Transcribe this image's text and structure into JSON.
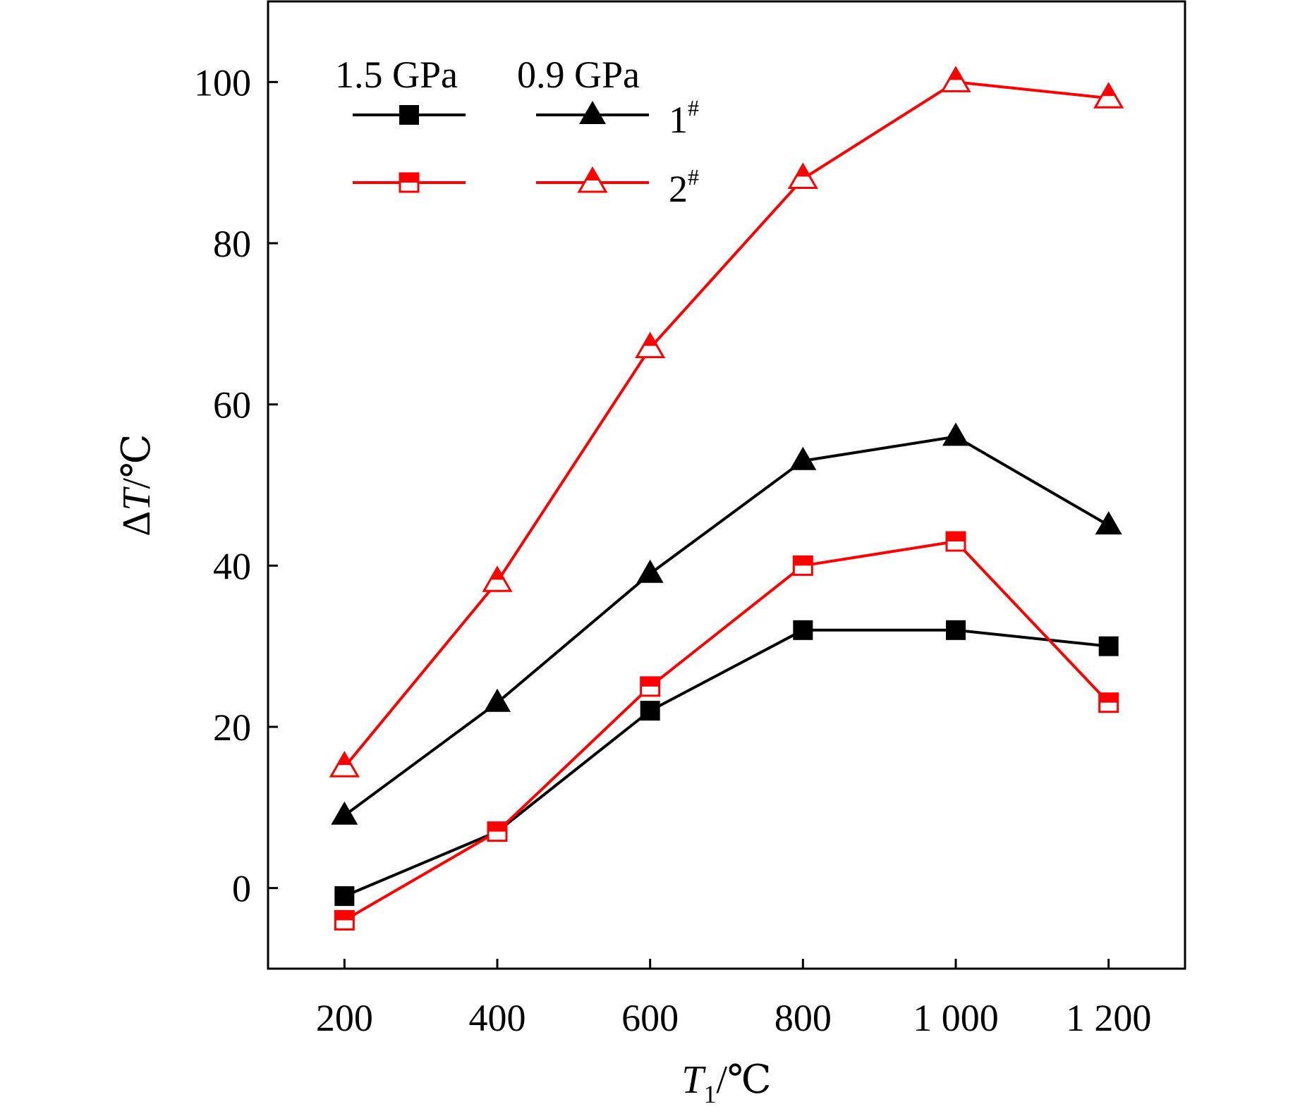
{
  "chart_data": {
    "type": "line",
    "title": "",
    "xlabel": {
      "main": "T",
      "sub": "1",
      "unit": "/℃"
    },
    "ylabel": {
      "prefix": "Δ",
      "main": "T",
      "unit": "/℃"
    },
    "x": [
      200,
      400,
      600,
      800,
      1000,
      1200
    ],
    "xtick_labels": [
      "200",
      "400",
      "600",
      "800",
      "1 000",
      "1 200"
    ],
    "yticks": [
      0,
      20,
      40,
      60,
      80,
      100
    ],
    "ytick_labels": [
      "0",
      "20",
      "40",
      "60",
      "80",
      "100"
    ],
    "xlim": [
      100,
      1300
    ],
    "ylim": [
      -10,
      110
    ],
    "grid": false,
    "legend": {
      "placement": "top-left",
      "column_headers": [
        "1.5 GPa",
        "0.9 GPa"
      ],
      "row_labels": [
        {
          "base": "1",
          "sup": "#"
        },
        {
          "base": "2",
          "sup": "#"
        }
      ]
    },
    "series": [
      {
        "pressure": "1.5 GPa",
        "sample": "1#",
        "marker": "square",
        "filled": true,
        "color": "#000000",
        "values": [
          -1,
          7,
          22,
          32,
          32,
          30
        ]
      },
      {
        "pressure": "0.9 GPa",
        "sample": "1#",
        "marker": "triangle",
        "filled": true,
        "color": "#000000",
        "values": [
          9,
          23,
          39,
          53,
          56,
          45
        ]
      },
      {
        "pressure": "1.5 GPa",
        "sample": "2#",
        "marker": "square",
        "filled": false,
        "color": "#ff0000",
        "values": [
          -4,
          7,
          25,
          40,
          43,
          23
        ]
      },
      {
        "pressure": "0.9 GPa",
        "sample": "2#",
        "marker": "triangle",
        "filled": false,
        "color": "#ff0000",
        "values": [
          15,
          38,
          67,
          88,
          100,
          98
        ]
      }
    ]
  }
}
